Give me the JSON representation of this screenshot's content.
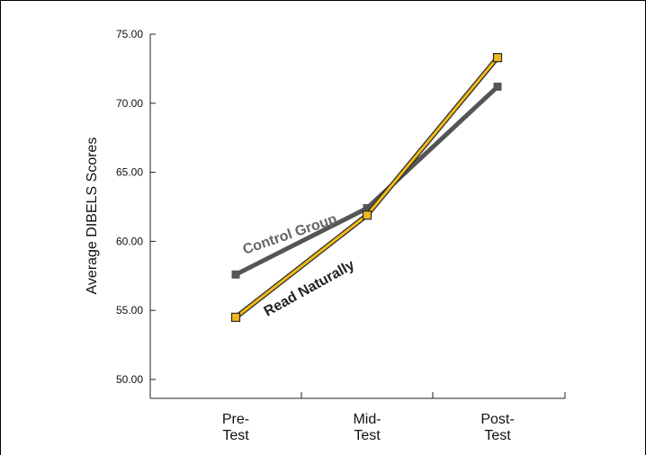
{
  "chart_data": {
    "type": "line",
    "title": "",
    "xlabel": "",
    "ylabel": "Average DIBELS Scores",
    "categories": [
      [
        "Pre-",
        "Test"
      ],
      [
        "Mid-",
        "Test"
      ],
      [
        "Post-",
        "Test"
      ]
    ],
    "y_ticks": [
      "50.00",
      "55.00",
      "60.00",
      "65.00",
      "70.00",
      "75.00"
    ],
    "ylim": [
      50,
      75
    ],
    "grid": false,
    "legend": "inline labels on lines",
    "series": [
      {
        "name": "Control Group",
        "values": [
          57.6,
          62.4,
          71.2
        ],
        "color": "#555555",
        "marker": "square-filled"
      },
      {
        "name": "Read Naturally",
        "values": [
          54.5,
          61.9,
          73.3
        ],
        "color": "#f0b91a",
        "marker": "square-hollow"
      }
    ]
  }
}
